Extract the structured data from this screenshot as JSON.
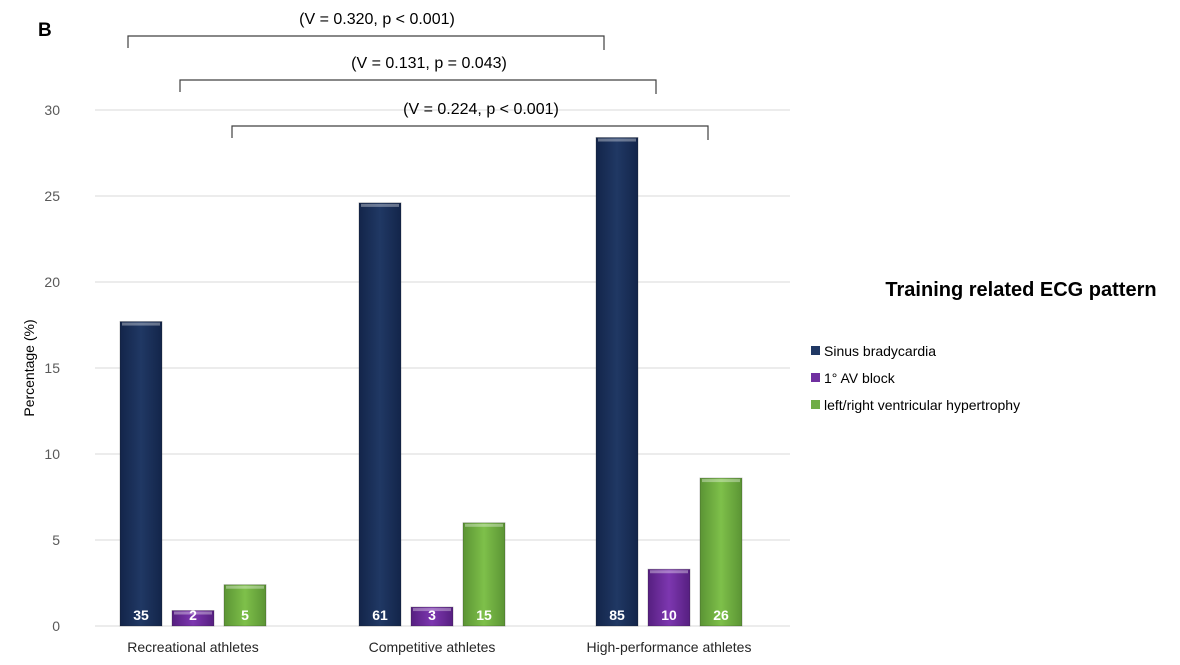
{
  "panel_label": "B",
  "legend_title": "Training related ECG pattern",
  "chart_data": {
    "type": "bar",
    "ylabel": "Percentage (%)",
    "ylim": [
      0,
      30
    ],
    "yticks": [
      0,
      5,
      10,
      15,
      20,
      25,
      30
    ],
    "grid": true,
    "legend_placement": "right",
    "categories": [
      "Recreational athletes",
      "Competitive athletes",
      "High-performance athletes"
    ],
    "series": [
      {
        "name": "Sinus bradycardia",
        "color": "#203864",
        "values": [
          17.7,
          24.6,
          28.4
        ],
        "labels": [
          "35",
          "61",
          "85"
        ]
      },
      {
        "name": "1° AV block",
        "color": "#7030a0",
        "values": [
          0.9,
          1.1,
          3.3
        ],
        "labels": [
          "2",
          "3",
          "10"
        ]
      },
      {
        "name": "left/right ventricular hypertrophy",
        "color": "#70ad47",
        "values": [
          2.4,
          6.0,
          8.6
        ],
        "labels": [
          "5",
          "15",
          "26"
        ]
      }
    ],
    "annotations": [
      {
        "text": "(V = 0.320, p < 0.001)",
        "from": [
          0,
          0
        ],
        "to": [
          2,
          0
        ]
      },
      {
        "text": "(V = 0.131, p = 0.043)",
        "from": [
          0,
          1
        ],
        "to": [
          2,
          1
        ]
      },
      {
        "text": "(V = 0.224, p < 0.001)",
        "from": [
          0,
          2
        ],
        "to": [
          2,
          2
        ]
      }
    ]
  }
}
